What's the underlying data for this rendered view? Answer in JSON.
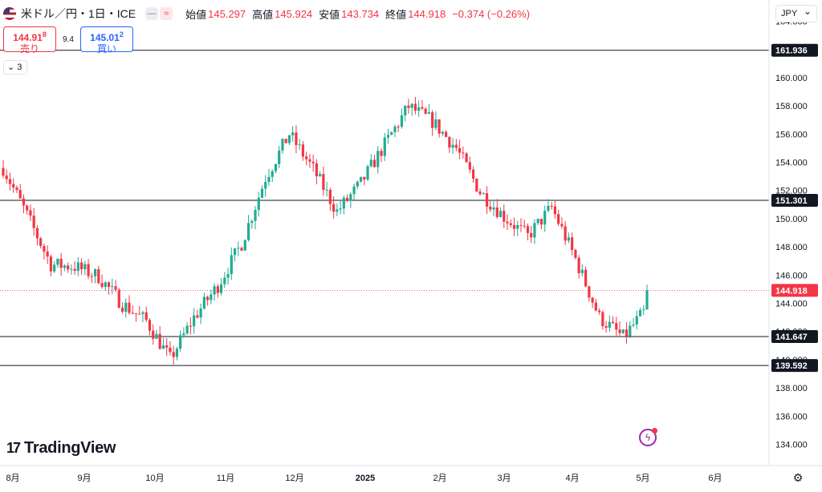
{
  "header": {
    "symbol": "米ドル／円・1日・ICE",
    "open_label": "始値",
    "open": "145.297",
    "high_label": "高値",
    "high": "145.924",
    "low_label": "安値",
    "low": "143.734",
    "close_label": "終値",
    "close": "144.918",
    "change": "−0.374 (−0.26%)"
  },
  "trade": {
    "sell_price": "144.91",
    "sell_pip": "8",
    "sell_label": "売り",
    "spread": "9.4",
    "buy_price": "145.01",
    "buy_pip": "2",
    "buy_label": "買い"
  },
  "indicators_count": "3",
  "currency": "JPY",
  "brand": "TradingView",
  "colors": {
    "up": "#22ab94",
    "down": "#f23645",
    "level": "#131722",
    "current": "#f23645"
  },
  "chart_data": {
    "type": "candlestick",
    "ylim": [
      132.5,
      165.5
    ],
    "yticks": [
      164,
      160,
      158,
      156,
      154,
      152,
      150,
      148,
      146,
      144,
      142,
      140,
      138,
      136,
      134
    ],
    "horizontal_levels": [
      161.936,
      151.301,
      141.647,
      139.592
    ],
    "current_price": 144.918,
    "x_ticks": [
      "8月",
      "9月",
      "10月",
      "11月",
      "12月",
      "2025",
      "2月",
      "3月",
      "4月",
      "5月",
      "6月"
    ],
    "keypoints": [
      [
        153.5,
        153.7
      ],
      [
        150.5,
        150
      ],
      [
        146.5,
        147
      ],
      [
        146.7,
        146.5
      ],
      [
        147.3,
        144.5
      ],
      [
        144,
        143.9
      ],
      [
        143.5,
        142
      ],
      [
        139.8,
        140.3
      ],
      [
        143.5,
        142.5
      ],
      [
        144.5,
        146
      ],
      [
        148.5,
        148
      ],
      [
        152.5,
        153.3
      ],
      [
        155.5,
        156.5
      ],
      [
        154.5,
        152.5
      ],
      [
        150.5,
        150.5
      ],
      [
        152.5,
        152.5
      ],
      [
        154.5,
        156
      ],
      [
        157.5,
        158.4
      ],
      [
        157.5,
        156.3
      ],
      [
        155.5,
        154.5
      ],
      [
        152,
        151.8
      ],
      [
        150.7,
        149.6
      ],
      [
        149,
        148.5
      ],
      [
        150.5,
        151.1
      ],
      [
        147.8,
        146.5
      ],
      [
        143.5,
        142.5
      ],
      [
        141,
        142.2
      ],
      [
        142.3,
        144.9
      ]
    ]
  }
}
